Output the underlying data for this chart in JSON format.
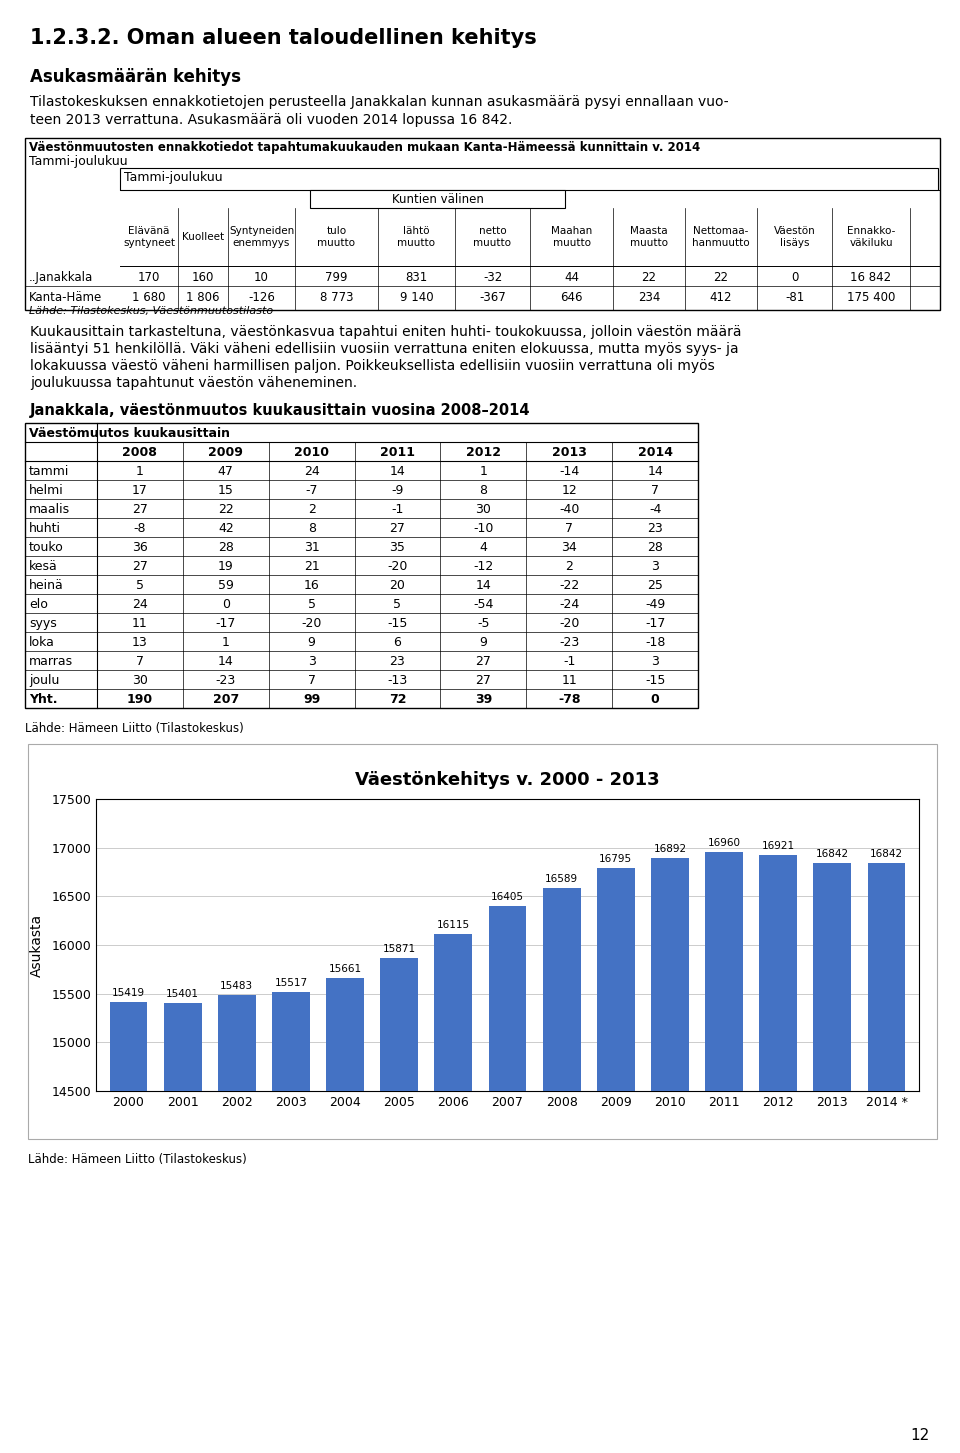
{
  "page_title": "1.2.3.2. Oman alueen taloudellinen kehitys",
  "section1_title": "Asukasmäärän kehitys",
  "section1_text1": "Tilastokeskuksen ennakkotietojen perusteella Janakkalan kunnan asukasmäärä pysyi ennallaan vuo-",
  "section1_text2": "teen 2013 verrattuna. Asukasmäärä oli vuoden 2014 lopussa 16 842.",
  "table1_title": "Väestönmuutosten ennakkotiedot tapahtumakuukauden mukaan Kanta-Hämeessä kunnittain v. 2014",
  "table1_period_outer": "Tammi-joulukuu",
  "table1_period_inner": "Tammi-joulukuu",
  "table1_kuntien_valinen": "Kuntien välinen",
  "table1_col_headers": [
    "Elävänä\nsyntyneet",
    "Kuolleet",
    "Syntyneiden\nenemmyys",
    "tulo\nmuutto",
    "lähtö\nmuutto",
    "netto\nmuutto",
    "Maahan\nmuutto",
    "Maasta\nmuutto",
    "Nettomaa-\nhanmuutto",
    "Väestön\nlisäys",
    "Ennakko-\nväkiluku"
  ],
  "table1_rows": [
    {
      "label": "..Janakkala",
      "values": [
        170,
        160,
        10,
        799,
        831,
        -32,
        44,
        22,
        22,
        0,
        "16 842"
      ]
    },
    {
      "label": "Kanta-Häme",
      "values": [
        "1 680",
        "1 806",
        -126,
        "8 773",
        "9 140",
        -367,
        646,
        234,
        412,
        -81,
        "175 400"
      ]
    }
  ],
  "table1_source": "Lähde: Tilastokeskus, Väestönmuutostilasto",
  "section2_text1": "Kuukausittain tarkasteltuna, väestönkasvua tapahtui eniten huhti- toukokuussa, jolloin väestön määrä",
  "section2_text2": "lisääntyi 51 henkilöllä. Väki väheni edellisiin vuosiin verrattuna eniten elokuussa, mutta myös syys- ja",
  "section2_text3": "lokakuussa väestö väheni harmillisen paljon. Poikkeuksellista edellisiin vuosiin verrattuna oli myös",
  "section2_text4": "joulukuussa tapahtunut väestön väheneminen.",
  "table2_title": "Janakkala, väestönmuutos kuukausittain vuosina 2008–2014",
  "table2_header": "Väestömuutos kuukausittain",
  "table2_years": [
    2008,
    2009,
    2010,
    2011,
    2012,
    2013,
    2014
  ],
  "table2_months": [
    "tammi",
    "helmi",
    "maalis",
    "huhti",
    "touko",
    "kesä",
    "heinä",
    "elo",
    "syys",
    "loka",
    "marras",
    "joulu",
    "Yht."
  ],
  "table2_data": [
    [
      1,
      47,
      24,
      14,
      1,
      -14,
      14
    ],
    [
      17,
      15,
      -7,
      -9,
      8,
      12,
      7
    ],
    [
      27,
      22,
      2,
      -1,
      30,
      -40,
      -4
    ],
    [
      -8,
      42,
      8,
      27,
      -10,
      7,
      23
    ],
    [
      36,
      28,
      31,
      35,
      4,
      34,
      28
    ],
    [
      27,
      19,
      21,
      -20,
      -12,
      2,
      3
    ],
    [
      5,
      59,
      16,
      20,
      14,
      -22,
      25
    ],
    [
      24,
      0,
      5,
      5,
      -54,
      -24,
      -49
    ],
    [
      11,
      -17,
      -20,
      -15,
      -5,
      -20,
      -17
    ],
    [
      13,
      1,
      9,
      6,
      9,
      -23,
      -18
    ],
    [
      7,
      14,
      3,
      23,
      27,
      -1,
      3
    ],
    [
      30,
      -23,
      7,
      -13,
      27,
      11,
      -15
    ],
    [
      190,
      207,
      99,
      72,
      39,
      -78,
      0
    ]
  ],
  "table2_source": "Lähde: Hämeen Liitto (Tilastokeskus)",
  "chart_title": "Väestönkehitys v. 2000 - 2013",
  "chart_years": [
    "2000",
    "2001",
    "2002",
    "2003",
    "2004",
    "2005",
    "2006",
    "2007",
    "2008",
    "2009",
    "2010",
    "2011",
    "2012",
    "2013",
    "2014 *"
  ],
  "chart_values": [
    15419,
    15401,
    15483,
    15517,
    15661,
    15871,
    16115,
    16405,
    16589,
    16795,
    16892,
    16960,
    16921,
    16842,
    16842
  ],
  "chart_ylabel": "Asukasta",
  "chart_ylim": [
    14500,
    17500
  ],
  "chart_yticks": [
    14500,
    15000,
    15500,
    16000,
    16500,
    17000,
    17500
  ],
  "chart_bar_color": "#4472C4",
  "chart_source": "Lähde: Hämeen Liitto (Tilastokeskus)",
  "page_number": "12",
  "background_color": "#ffffff"
}
